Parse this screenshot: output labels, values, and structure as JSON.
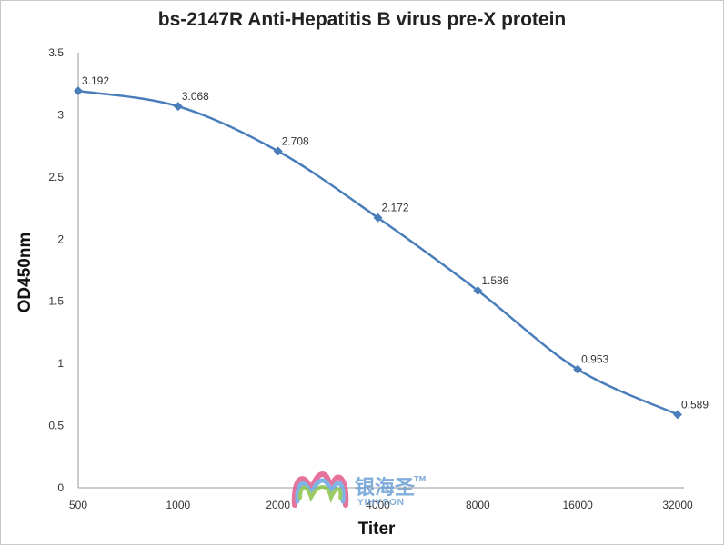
{
  "chart_data": {
    "type": "line",
    "title": "bs-2147R Anti-Hepatitis B virus pre-X protein",
    "xlabel": "Titer",
    "ylabel": "OD450nm",
    "categories": [
      "500",
      "1000",
      "2000",
      "4000",
      "8000",
      "16000",
      "32000"
    ],
    "series": [
      {
        "values": [
          3.192,
          3.068,
          2.708,
          2.172,
          1.586,
          0.953,
          0.589
        ]
      }
    ],
    "data_labels": [
      "3.192",
      "3.068",
      "2.708",
      "2.172",
      "1.586",
      "0.953",
      "0.589"
    ],
    "yticks": [
      "0",
      "0.5",
      "1",
      "1.5",
      "2",
      "2.5",
      "3",
      "3.5"
    ],
    "ylim": [
      0,
      3.5
    ],
    "grid": false,
    "legend": "none",
    "line_color": "#4a7ebb",
    "watermark": {
      "text_cn": "银海圣",
      "text_en": "YIHYSON",
      "tm": "TM"
    }
  }
}
